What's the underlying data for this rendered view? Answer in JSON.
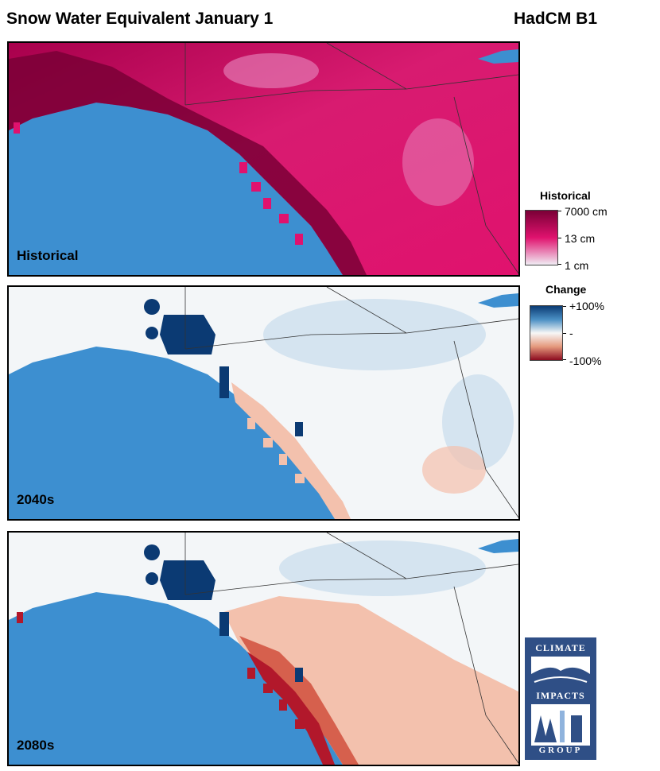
{
  "header": {
    "title": "Snow Water Equivalent January 1",
    "model": "HadCM B1"
  },
  "panels": [
    {
      "label": "Historical",
      "scale": "historical"
    },
    {
      "label": "2040s",
      "scale": "change"
    },
    {
      "label": "2080s",
      "scale": "change"
    }
  ],
  "legends": {
    "historical": {
      "title": "Historical",
      "ticks": [
        "7000 cm",
        "13 cm",
        "1 cm"
      ],
      "colors": [
        "#7a0036",
        "#e0126e",
        "#f0ecf4"
      ]
    },
    "change": {
      "title": "Change",
      "ticks": [
        "+100%",
        "-",
        "-100%"
      ],
      "colors": [
        "#0b3a73",
        "#f7f7f7",
        "#8c0b1f"
      ]
    }
  },
  "logo": {
    "top_text": "CLIMATE",
    "middle_text": "IMPACTS",
    "bottom_text": "GROUP"
  },
  "colors": {
    "ocean": "#3d8fd0",
    "historical_fill": "#d81b70",
    "historical_dark": "#7a0036",
    "historical_light": "#e88ac0",
    "change_neutral": "#f3f6f8",
    "change_blue": "#0b3a73",
    "change_light_blue": "#cde0ee",
    "change_red": "#b2182b",
    "change_light_red": "#f3c1ad"
  }
}
